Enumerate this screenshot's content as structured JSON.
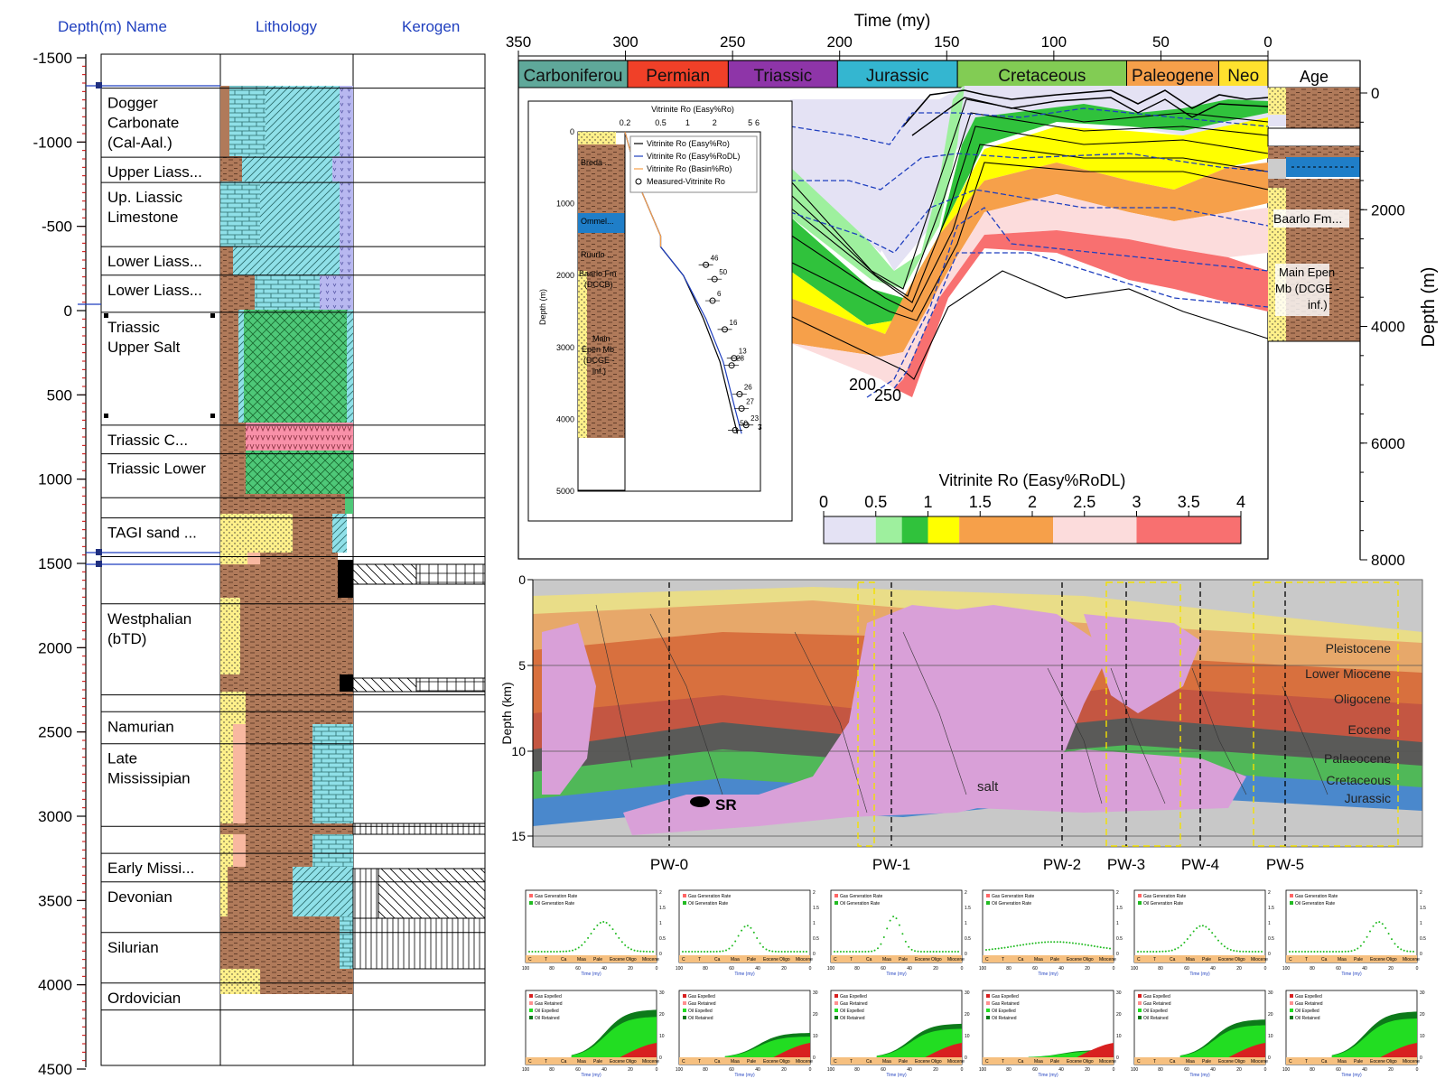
{
  "left_panel": {
    "headers": {
      "depth_name": "Depth(m)  Name",
      "lithology": "Lithology",
      "kerogen": "Kerogen"
    },
    "depth_axis": {
      "ticks": [
        -1500,
        -1000,
        -500,
        0,
        500,
        1000,
        1500,
        2000,
        2500,
        3000,
        3500,
        4000,
        4500
      ],
      "range": [
        -1500,
        4500
      ]
    },
    "formations": [
      {
        "name": "Dogger Carbonate (Cal-Aal.)",
        "top": -1320,
        "base": -910
      },
      {
        "name": "Upper Liass...",
        "top": -910,
        "base": -760
      },
      {
        "name": "Up. Liassic Limestone",
        "top": -760,
        "base": -380
      },
      {
        "name": "Lower Liass...",
        "top": -380,
        "base": -210
      },
      {
        "name": "Lower Liass...",
        "top": -210,
        "base": 10
      },
      {
        "name": "Triassic Upper Salt",
        "top": 10,
        "base": 680
      },
      {
        "name": "Triassic C...",
        "top": 680,
        "base": 850
      },
      {
        "name": "Triassic Lower",
        "top": 850,
        "base": 1110
      },
      {
        "name": "",
        "top": 1110,
        "base": 1230
      },
      {
        "name": "TAGI sand ...",
        "top": 1230,
        "base": 1460
      },
      {
        "name": "",
        "top": 1460,
        "base": 1740
      },
      {
        "name": "Westphalian (bTD)",
        "top": 1740,
        "base": 2280
      },
      {
        "name": "",
        "top": 2280,
        "base": 2380
      },
      {
        "name": "Namurian",
        "top": 2380,
        "base": 2570
      },
      {
        "name": "Late Mississipian",
        "top": 2570,
        "base": 3060
      },
      {
        "name": "",
        "top": 3060,
        "base": 3220
      },
      {
        "name": "Early Missi...",
        "top": 3220,
        "base": 3390
      },
      {
        "name": "Devonian",
        "top": 3390,
        "base": 3690
      },
      {
        "name": "Silurian",
        "top": 3690,
        "base": 3990
      },
      {
        "name": "Ordovician",
        "top": 3990,
        "base": 4150
      }
    ]
  },
  "burial_plot": {
    "time_axis_title": "Time (my)",
    "time_ticks": [
      350,
      300,
      250,
      200,
      150,
      100,
      50,
      0
    ],
    "periods": [
      {
        "name": "Carboniferou",
        "color": "#5fa89a"
      },
      {
        "name": "Permian",
        "color": "#f04028"
      },
      {
        "name": "Triassic",
        "color": "#8e35a8"
      },
      {
        "name": "Jurassic",
        "color": "#34b6d0"
      },
      {
        "name": "Cretaceous",
        "color": "#82cc54"
      },
      {
        "name": "Paleogene",
        "color": "#f6a04a"
      },
      {
        "name": "Neo",
        "color": "#ffe12e"
      }
    ],
    "age_label": "Age",
    "depth_axis_title": "Depth (m)",
    "depth_ticks": [
      0,
      2000,
      4000,
      6000,
      8000
    ],
    "column_labels": [
      "Baarlo Fm...",
      "Main Epen Mb (DCGE - inf.)"
    ],
    "isoline_labels": [
      "200",
      "250"
    ],
    "colorbar": {
      "title": "Vitrinite Ro (Easy%RoDL)",
      "ticks": [
        "0",
        "0.5",
        "1",
        "1.5",
        "2",
        "2.5",
        "3",
        "3.5",
        "4"
      ],
      "colors": [
        "#e4e2f4",
        "#9ef09e",
        "#30c23c",
        "#ffff00",
        "#f6a04a",
        "#f6a04a",
        "#fcdcdc",
        "#f87070"
      ]
    }
  },
  "inset_plot": {
    "title": "Vitrinite Ro (Easy%Ro)",
    "x_ticks": [
      "0.2",
      "0.5",
      "1",
      "2",
      "5",
      "6"
    ],
    "y_axis_title": "Depth (m)",
    "y_ticks": [
      "0",
      "1000",
      "2000",
      "3000",
      "4000",
      "5000"
    ],
    "legend": [
      "Vitrinite Ro (Easy%Ro)",
      "Vitrinite Ro (Easy%RoDL)",
      "Vitrinite Ro (Basin%Ro)",
      "Measured-Vitrinite Ro"
    ],
    "column_labels": [
      "Breda ...",
      "Ommel...",
      "Ruurlo ...",
      "Baarlo Fm (DCCB)",
      "Main Epen Mb (DCGE - inf.)"
    ],
    "point_labels": [
      "46",
      "50",
      "6",
      "16",
      "13",
      "28",
      "26",
      "27",
      "50",
      "23",
      "7",
      "3"
    ]
  },
  "chart_data": {
    "type": "line",
    "title": "Vitrinite Ro (Easy%Ro)",
    "xlabel": "Vitrinite Ro",
    "ylabel": "Depth (m)",
    "ylim": [
      0,
      5000
    ],
    "series": [
      {
        "name": "Vitrinite Ro (Easy%Ro)",
        "x": [
          0.2,
          0.3,
          0.5,
          0.5,
          0.9,
          1.5,
          2.3,
          3.0,
          3.6
        ],
        "y": [
          0,
          800,
          1450,
          1600,
          2000,
          2600,
          3200,
          3800,
          4200
        ]
      },
      {
        "name": "Vitrinite Ro (Easy%RoDL)",
        "x": [
          0.2,
          0.3,
          0.5,
          0.5,
          0.9,
          1.6,
          2.5,
          3.3,
          4.0
        ],
        "y": [
          0,
          800,
          1450,
          1600,
          2000,
          2600,
          3200,
          3800,
          4200
        ]
      },
      {
        "name": "Measured-Vitrinite Ro",
        "x": [
          1.6,
          2.0,
          1.9,
          2.6,
          3.3,
          3.1,
          3.8,
          4.0,
          3.4,
          4.5
        ],
        "y": [
          1850,
          2050,
          2350,
          2750,
          3150,
          3250,
          3650,
          3850,
          4150,
          4080
        ]
      }
    ]
  },
  "cross_section": {
    "y_axis_title": "Depth (km)",
    "y_ticks": [
      "0",
      "5",
      "10",
      "15"
    ],
    "layers": [
      "Pleistocene",
      "Lower Miocene",
      "Oligocene",
      "Eocene",
      "Palaeocene",
      "Cretaceous",
      "Jurassic"
    ],
    "salt_label": "salt",
    "sr_label": "SR",
    "wells": [
      "PW-0",
      "PW-1",
      "PW-2",
      "PW-3",
      "PW-4",
      "PW-5"
    ]
  },
  "small_charts": {
    "top_legend": [
      "Gas Generation Rate",
      "Oil Generation Rate"
    ],
    "bottom_legend": [
      "Gas Expelled",
      "Gas Retained",
      "Oil Expelled",
      "Oil Retained"
    ],
    "top_y_ticks": [
      "2",
      "1.5",
      "1",
      "0.5",
      "0"
    ],
    "bottom_y_ticks": [
      "30",
      "20",
      "10",
      "0"
    ],
    "x_ticks": [
      "100",
      "80",
      "60",
      "40",
      "20",
      "0"
    ],
    "x_label": "Time (my)",
    "stage_labels": [
      "C",
      "T",
      "Ca",
      "Maa",
      "Pale",
      "Eocene",
      "Oligo",
      "Miocene"
    ]
  }
}
